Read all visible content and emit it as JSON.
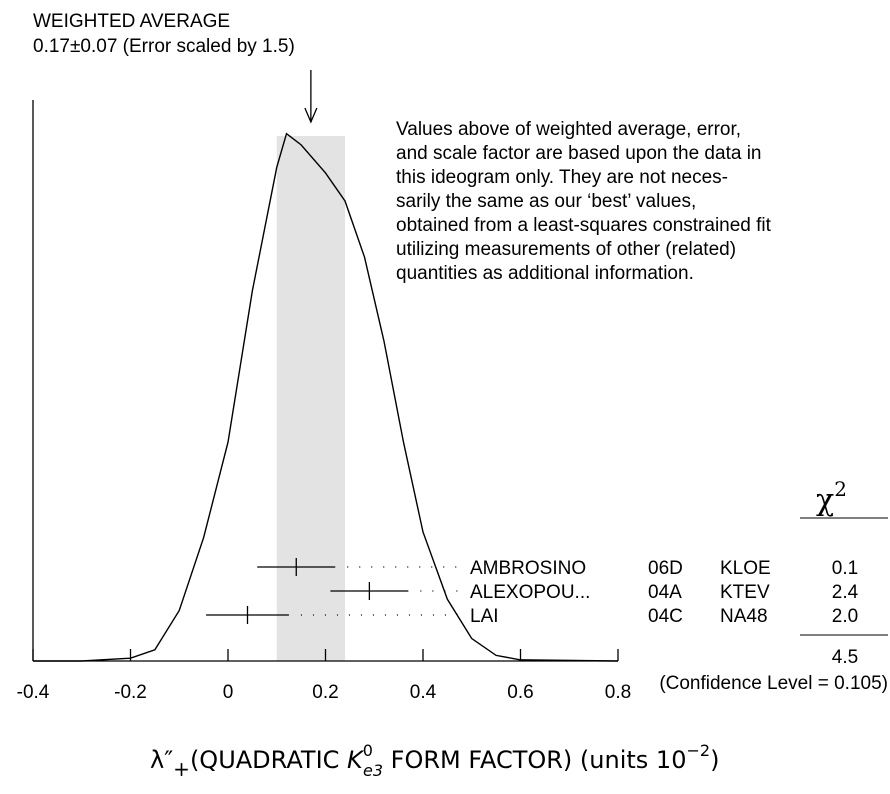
{
  "chart_data": {
    "type": "ideogram",
    "title": "WEIGHTED AVERAGE",
    "subtitle": "0.17±0.07 (Error scaled by 1.5)",
    "weighted_average": 0.17,
    "weighted_error": 0.07,
    "note": [
      "Values above of weighted average, error,",
      "and scale factor are based upon the data in",
      "this ideogram only.  They are not neces-",
      "sarily the same as our ‘best’ values,",
      "obtained from a least-squares constrained fit",
      "utilizing measurements of other (related)",
      "quantities as additional information."
    ],
    "x": [
      -0.4,
      -0.3,
      -0.2,
      -0.15,
      -0.1,
      -0.05,
      0,
      0.05,
      0.1,
      0.12,
      0.15,
      0.2,
      0.24,
      0.28,
      0.32,
      0.36,
      0.4,
      0.45,
      0.5,
      0.55,
      0.6,
      0.8
    ],
    "curve": [
      0,
      0,
      0.005,
      0.02,
      0.09,
      0.22,
      0.39,
      0.66,
      0.88,
      0.94,
      0.92,
      0.87,
      0.82,
      0.72,
      0.57,
      0.39,
      0.23,
      0.11,
      0.04,
      0.01,
      0.002,
      0
    ],
    "measurements": {
      "names": [
        "AMBROSINO",
        "ALEXOPOU...",
        "LAI"
      ],
      "codes": [
        "06D",
        "04A",
        "04C"
      ],
      "experiments": [
        "KLOE",
        "KTEV",
        "NA48"
      ],
      "values": [
        0.14,
        0.29,
        0.04
      ],
      "errors": [
        0.08,
        0.08,
        0.085
      ],
      "chi2": [
        "0.1",
        "2.4",
        "2.0"
      ]
    },
    "chi2_header": [
      "χ",
      "2"
    ],
    "chi2_total": "4.5",
    "confidence": "(Confidence Level = 0.105)",
    "xlabel": [
      "λ″",
      "+",
      "(QUADRATIC ",
      "K",
      "0",
      "e3",
      " FORM FACTOR) (units 10",
      "−2",
      ")"
    ],
    "xlim": [
      -0.4,
      0.8
    ],
    "ylim": [
      0,
      1
    ],
    "xticks": [
      -0.4,
      -0.2,
      0,
      0.2,
      0.4,
      0.6,
      0.8
    ],
    "band_color": "#e3e3e3"
  }
}
